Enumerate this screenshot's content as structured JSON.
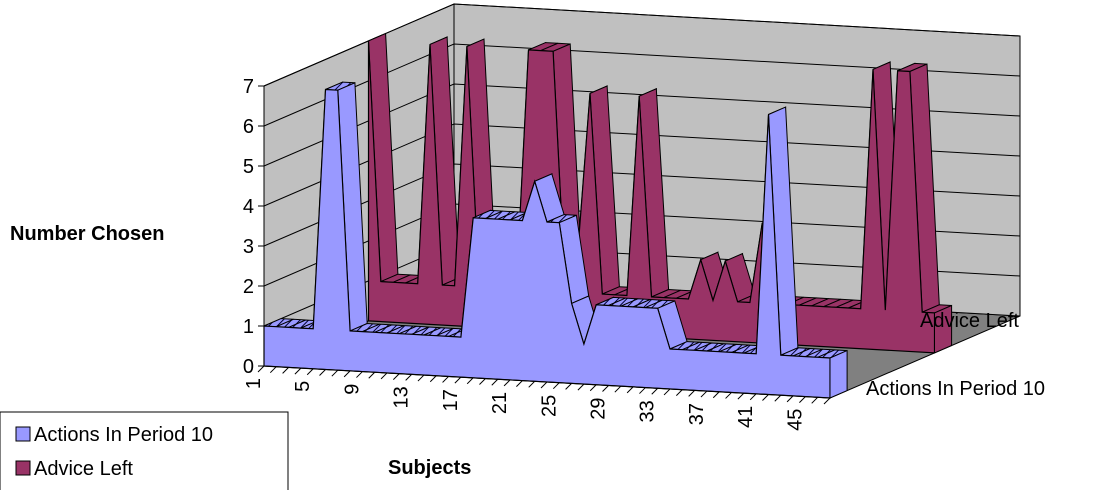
{
  "chart_data": {
    "type": "area",
    "subtype": "3d-area",
    "title": "",
    "xlabel": "Subjects",
    "ylabel": "Number Chosen",
    "ylim": [
      0,
      7
    ],
    "yticks": [
      "0",
      "1",
      "2",
      "3",
      "4",
      "5",
      "6",
      "7"
    ],
    "x": [
      1,
      2,
      3,
      4,
      5,
      6,
      7,
      8,
      9,
      10,
      11,
      12,
      13,
      14,
      15,
      16,
      17,
      18,
      19,
      20,
      21,
      22,
      23,
      24,
      25,
      26,
      27,
      28,
      29,
      30,
      31,
      32,
      33,
      34,
      35,
      36,
      37,
      38,
      39,
      40,
      41,
      42,
      43,
      44,
      45,
      46,
      47
    ],
    "xtick_labels": [
      "1",
      "5",
      "9",
      "13",
      "17",
      "21",
      "25",
      "29",
      "33",
      "37",
      "41",
      "45"
    ],
    "depth_labels": [
      "Actions In Period 10",
      "Advice Left"
    ],
    "series": [
      {
        "name": "Actions In Period 10",
        "color": "#9999ff",
        "values": [
          1,
          1,
          1,
          1,
          1,
          7,
          7,
          1,
          1,
          1,
          1,
          1,
          1,
          1,
          1,
          1,
          1,
          4,
          4,
          4,
          4,
          4,
          5,
          4,
          4,
          2,
          1,
          2,
          2,
          2,
          2,
          2,
          2,
          1,
          1,
          1,
          1,
          1,
          1,
          1,
          1,
          7,
          1,
          1,
          1,
          1,
          1
        ]
      },
      {
        "name": "Advice Left",
        "color": "#993366",
        "values": [
          7,
          1,
          1,
          1,
          1,
          7,
          1,
          1,
          7,
          1,
          1,
          1,
          1,
          7,
          7,
          7,
          1,
          2,
          6,
          1,
          1,
          1,
          6,
          1,
          1,
          1,
          1,
          2,
          1,
          2,
          1,
          1,
          3,
          1,
          1,
          1,
          1,
          1,
          1,
          1,
          1,
          7,
          1,
          7,
          7,
          1,
          1
        ]
      }
    ],
    "legend": {
      "position": "bottom-left",
      "entries": [
        "Actions In Period 10",
        "Advice Left"
      ]
    },
    "grid": true,
    "colors": {
      "floor": "#808080",
      "back_wall": "#c0c0c0",
      "side_wall": "#c0c0c0",
      "gridline": "#000000"
    }
  }
}
